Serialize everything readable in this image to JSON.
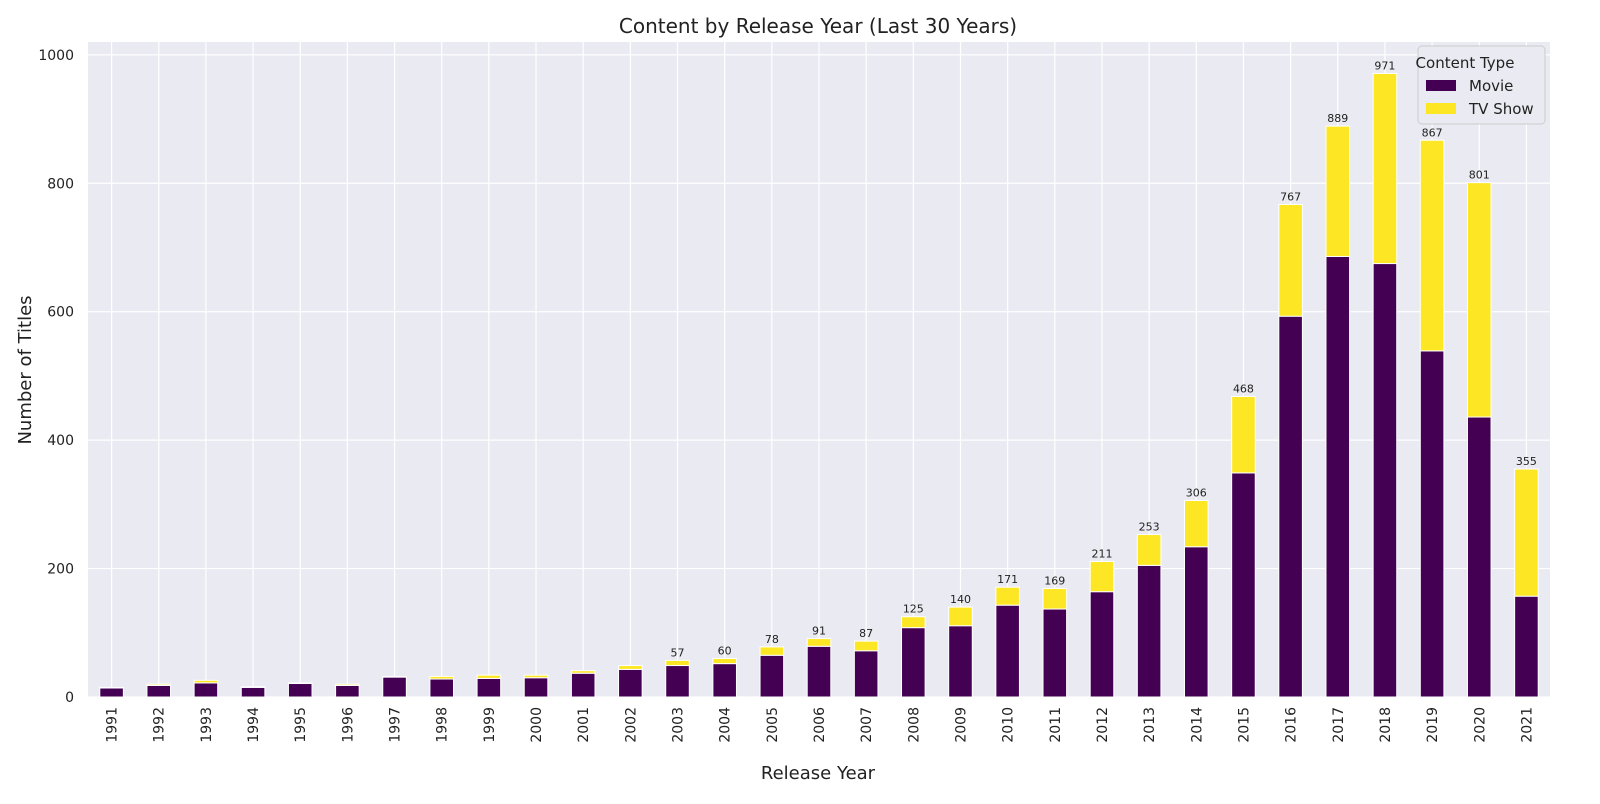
{
  "chart_data": {
    "type": "bar",
    "stacked": true,
    "title": "Content by Release Year (Last 30 Years)",
    "xlabel": "Release Year",
    "ylabel": "Number of Titles",
    "ylim": [
      0,
      1020
    ],
    "yticks": [
      0,
      200,
      400,
      600,
      800,
      1000
    ],
    "grid": true,
    "legend": {
      "title": "Content Type",
      "placement": "top-right"
    },
    "categories": [
      "1991",
      "1992",
      "1993",
      "1994",
      "1995",
      "1996",
      "1997",
      "1998",
      "1999",
      "2000",
      "2001",
      "2002",
      "2003",
      "2004",
      "2005",
      "2006",
      "2007",
      "2008",
      "2009",
      "2010",
      "2011",
      "2012",
      "2013",
      "2014",
      "2015",
      "2016",
      "2017",
      "2018",
      "2019",
      "2020",
      "2021"
    ],
    "series": [
      {
        "name": "Movie",
        "color": "#440154",
        "values": [
          14,
          18,
          22,
          15,
          21,
          18,
          31,
          28,
          29,
          30,
          37,
          43,
          49,
          52,
          65,
          79,
          72,
          108,
          111,
          143,
          137,
          164,
          205,
          234,
          349,
          593,
          686,
          675,
          539,
          436,
          157
        ]
      },
      {
        "name": "TV Show",
        "color": "#fde725",
        "values": [
          1,
          2,
          4,
          1,
          1,
          2,
          1,
          4,
          5,
          4,
          4,
          6,
          8,
          8,
          13,
          12,
          15,
          17,
          29,
          28,
          32,
          47,
          48,
          72,
          119,
          174,
          203,
          296,
          328,
          365,
          198
        ]
      }
    ],
    "totals_labels": [
      {
        "category": "2003",
        "value": 57
      },
      {
        "category": "2004",
        "value": 60
      },
      {
        "category": "2005",
        "value": 78
      },
      {
        "category": "2006",
        "value": 91
      },
      {
        "category": "2007",
        "value": 87
      },
      {
        "category": "2008",
        "value": 125
      },
      {
        "category": "2009",
        "value": 140
      },
      {
        "category": "2010",
        "value": 171
      },
      {
        "category": "2011",
        "value": 169
      },
      {
        "category": "2012",
        "value": 211
      },
      {
        "category": "2013",
        "value": 253
      },
      {
        "category": "2014",
        "value": 306
      },
      {
        "category": "2015",
        "value": 468
      },
      {
        "category": "2016",
        "value": 767
      },
      {
        "category": "2017",
        "value": 889
      },
      {
        "category": "2018",
        "value": 971
      },
      {
        "category": "2019",
        "value": 867
      },
      {
        "category": "2020",
        "value": 801
      },
      {
        "category": "2021",
        "value": 355
      }
    ],
    "colors": {
      "plot_background": "#eaeaf2",
      "grid": "#ffffff"
    }
  }
}
